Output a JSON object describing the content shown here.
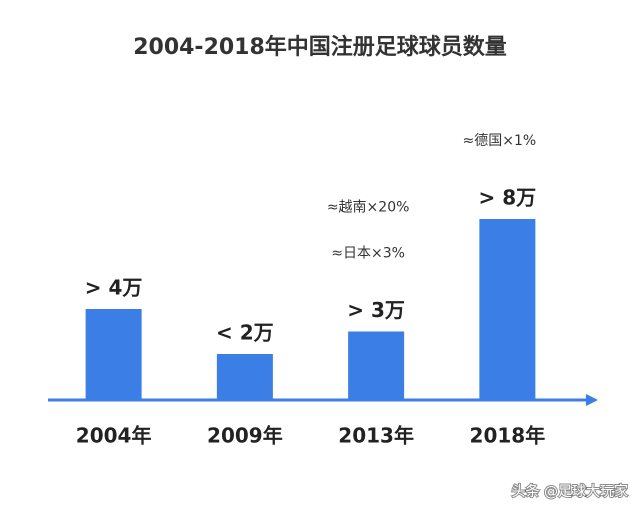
{
  "chart_data": {
    "type": "bar",
    "title": "2004-2018年中国注册足球球员数量",
    "categories": [
      "2004年",
      "2009年",
      "2013年",
      "2018年"
    ],
    "values": [
      4,
      2,
      3,
      8
    ],
    "value_labels": [
      "> 4万",
      "< 2万",
      "> 3万",
      "> 8万"
    ],
    "color": "#3a7ee6",
    "annotations": [
      {
        "category": "2013年",
        "text": "≈越南×20%"
      },
      {
        "category": "2013年",
        "text": "≈日本×3%"
      },
      {
        "category": "2018年",
        "text": "≈德国×1%"
      }
    ]
  },
  "watermark": "头条 @足球大玩家"
}
